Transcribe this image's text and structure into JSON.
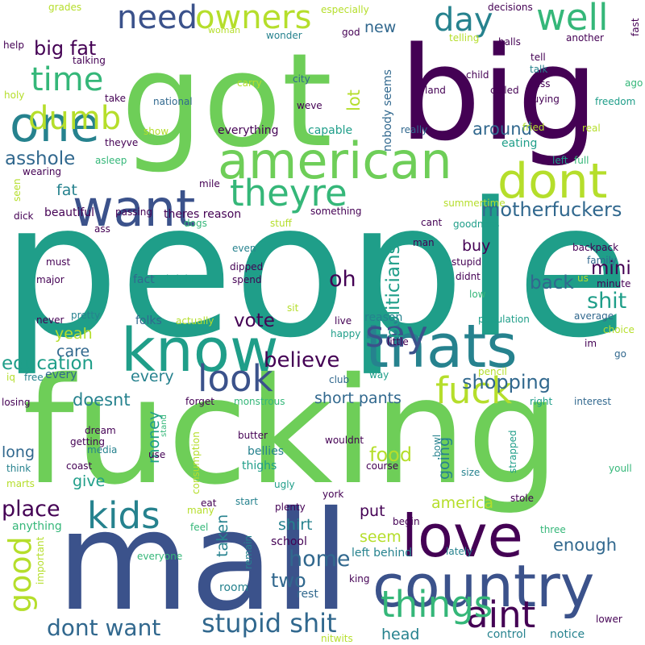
{
  "palette": {
    "dark_purple": "#440154",
    "indigo": "#3b528b",
    "blue": "#31688e",
    "teal": "#26828e",
    "sea_green": "#1f9e89",
    "green": "#35b779",
    "light_green": "#6ece58",
    "lime": "#b5de2b",
    "yellow": "#fde725",
    "background": "#ffffff"
  },
  "words": [
    {
      "text": "people"
    },
    {
      "text": "fucking"
    },
    {
      "text": "mall"
    },
    {
      "text": "got"
    },
    {
      "text": "big"
    },
    {
      "text": "know"
    },
    {
      "text": "thats"
    },
    {
      "text": "country"
    },
    {
      "text": "love"
    },
    {
      "text": "american"
    },
    {
      "text": "want"
    },
    {
      "text": "dont"
    },
    {
      "text": "one"
    },
    {
      "text": "theyre"
    },
    {
      "text": "say"
    },
    {
      "text": "kids"
    },
    {
      "text": "fuck"
    },
    {
      "text": "look"
    },
    {
      "text": "aint"
    },
    {
      "text": "things"
    },
    {
      "text": "well"
    },
    {
      "text": "owners"
    },
    {
      "text": "need"
    },
    {
      "text": "time"
    },
    {
      "text": "dumb"
    },
    {
      "text": "day"
    },
    {
      "text": "stupid shit"
    },
    {
      "text": "dont want"
    },
    {
      "text": "good"
    },
    {
      "text": "believe"
    },
    {
      "text": "shopping"
    },
    {
      "text": "motherfuckers"
    },
    {
      "text": "big fat"
    },
    {
      "text": "place"
    },
    {
      "text": "home"
    },
    {
      "text": "oh"
    },
    {
      "text": "shit"
    },
    {
      "text": "education"
    },
    {
      "text": "vote"
    },
    {
      "text": "politicians"
    },
    {
      "text": "asshole"
    },
    {
      "text": "back"
    },
    {
      "text": "mini"
    },
    {
      "text": "america"
    },
    {
      "text": "food"
    },
    {
      "text": "two"
    },
    {
      "text": "head"
    },
    {
      "text": "every"
    },
    {
      "text": "around"
    },
    {
      "text": "doesnt"
    },
    {
      "text": "short pants"
    },
    {
      "text": "enough"
    },
    {
      "text": "money"
    },
    {
      "text": "going"
    },
    {
      "text": "lot"
    },
    {
      "text": "yeah"
    },
    {
      "text": "put"
    },
    {
      "text": "new"
    },
    {
      "text": "seem"
    },
    {
      "text": "shirt"
    },
    {
      "text": "buy"
    },
    {
      "text": "long"
    },
    {
      "text": "give"
    },
    {
      "text": "care"
    },
    {
      "text": "fat"
    },
    {
      "text": "taken"
    },
    {
      "text": "theres reason"
    },
    {
      "text": "beautiful"
    },
    {
      "text": "everything"
    },
    {
      "text": "capable"
    },
    {
      "text": "nobody seems"
    },
    {
      "text": "eating"
    },
    {
      "text": "folks"
    },
    {
      "text": "fact"
    },
    {
      "text": "control"
    },
    {
      "text": "notice"
    },
    {
      "text": "bellies"
    },
    {
      "text": "thighs"
    },
    {
      "text": "rest"
    },
    {
      "text": "room"
    },
    {
      "text": "reason"
    },
    {
      "text": "every"
    },
    {
      "text": "left behind"
    },
    {
      "text": "school"
    },
    {
      "text": "anything"
    },
    {
      "text": "wonder"
    },
    {
      "text": "especially"
    },
    {
      "text": "grades"
    },
    {
      "text": "decisions"
    },
    {
      "text": "fast"
    },
    {
      "text": "help"
    },
    {
      "text": "woman"
    },
    {
      "text": "god"
    },
    {
      "text": "balls"
    },
    {
      "text": "another"
    },
    {
      "text": "telling"
    },
    {
      "text": "talking"
    },
    {
      "text": "city"
    },
    {
      "text": "land"
    },
    {
      "text": "child"
    },
    {
      "text": "called"
    },
    {
      "text": "tell"
    },
    {
      "text": "talk"
    },
    {
      "text": "pass"
    },
    {
      "text": "ago"
    },
    {
      "text": "holy"
    },
    {
      "text": "carry"
    },
    {
      "text": "weve"
    },
    {
      "text": "take"
    },
    {
      "text": "national"
    },
    {
      "text": "buying"
    },
    {
      "text": "freedom"
    },
    {
      "text": "show"
    },
    {
      "text": "really"
    },
    {
      "text": "fried"
    },
    {
      "text": "real"
    },
    {
      "text": "theyve"
    },
    {
      "text": "asleep"
    },
    {
      "text": "left"
    },
    {
      "text": "full"
    },
    {
      "text": "wearing"
    },
    {
      "text": "mile"
    },
    {
      "text": "seen"
    },
    {
      "text": "summertime"
    },
    {
      "text": "dick"
    },
    {
      "text": "passing"
    },
    {
      "text": "dogs"
    },
    {
      "text": "stuff"
    },
    {
      "text": "something"
    },
    {
      "text": "cant"
    },
    {
      "text": "goodness"
    },
    {
      "text": "backpack"
    },
    {
      "text": "ass"
    },
    {
      "text": "even"
    },
    {
      "text": "man"
    },
    {
      "text": "family"
    },
    {
      "text": "must"
    },
    {
      "text": "dipped"
    },
    {
      "text": "stupid"
    },
    {
      "text": "major"
    },
    {
      "text": "bright"
    },
    {
      "text": "spend"
    },
    {
      "text": "didnt"
    },
    {
      "text": "us"
    },
    {
      "text": "minute"
    },
    {
      "text": "low"
    },
    {
      "text": "sit"
    },
    {
      "text": "pretty"
    },
    {
      "text": "actually"
    },
    {
      "text": "population"
    },
    {
      "text": "average"
    },
    {
      "text": "never"
    },
    {
      "text": "live"
    },
    {
      "text": "happy"
    },
    {
      "text": "choice"
    },
    {
      "text": "im"
    },
    {
      "text": "go"
    },
    {
      "text": "little"
    },
    {
      "text": "iq"
    },
    {
      "text": "pencil"
    },
    {
      "text": "free"
    },
    {
      "text": "club"
    },
    {
      "text": "way"
    },
    {
      "text": "losing"
    },
    {
      "text": "forget"
    },
    {
      "text": "monstrous"
    },
    {
      "text": "right"
    },
    {
      "text": "interest"
    },
    {
      "text": "stand"
    },
    {
      "text": "dream"
    },
    {
      "text": "getting"
    },
    {
      "text": "butter"
    },
    {
      "text": "wouldnt"
    },
    {
      "text": "bowl"
    },
    {
      "text": "strapped"
    },
    {
      "text": "media"
    },
    {
      "text": "use"
    },
    {
      "text": "think"
    },
    {
      "text": "coast"
    },
    {
      "text": "consumption"
    },
    {
      "text": "course"
    },
    {
      "text": "size"
    },
    {
      "text": "youll"
    },
    {
      "text": "marts"
    },
    {
      "text": "ugly"
    },
    {
      "text": "york"
    },
    {
      "text": "stole"
    },
    {
      "text": "eat"
    },
    {
      "text": "start"
    },
    {
      "text": "plenty"
    },
    {
      "text": "many"
    },
    {
      "text": "begin"
    },
    {
      "text": "three"
    },
    {
      "text": "feel"
    },
    {
      "text": "remain"
    },
    {
      "text": "everyone"
    },
    {
      "text": "lately"
    },
    {
      "text": "important"
    },
    {
      "text": "king"
    },
    {
      "text": "lower"
    },
    {
      "text": "nitwits"
    }
  ]
}
